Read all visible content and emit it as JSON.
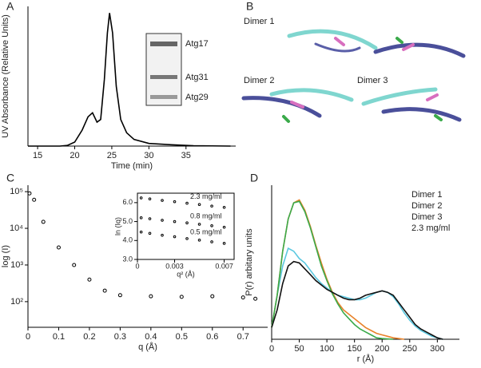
{
  "chart_data": [
    {
      "type": "line",
      "panel": "A",
      "xlabel": "Time (min)",
      "ylabel": "UV Absorbance (Relative Units)",
      "x": [
        13.7,
        18,
        19,
        20,
        21,
        21.8,
        22.4,
        23,
        23.5,
        24,
        24.4,
        24.7,
        25.1,
        25.6,
        26.2,
        27,
        28,
        30,
        33,
        36,
        41
      ],
      "values": [
        0,
        0,
        0.5,
        3,
        12,
        22,
        25,
        18,
        20,
        50,
        85,
        100,
        85,
        45,
        20,
        10,
        5,
        2,
        1,
        0.3,
        0
      ],
      "color": "#000000",
      "xlim": [
        13.7,
        41.7
      ],
      "ylim": [
        0,
        105
      ],
      "xticks": [
        15,
        20,
        25,
        30,
        35
      ],
      "frame": "open",
      "gel_labels": [
        "Atg17",
        "Atg31",
        "Atg29"
      ]
    },
    {
      "type": "scatter",
      "panel": "C",
      "xlabel": "q (Å)",
      "ylabel": "log (I)",
      "log_y": true,
      "x": [
        0.005,
        0.02,
        0.05,
        0.1,
        0.15,
        0.2,
        0.25,
        0.3,
        0.4,
        0.5,
        0.6,
        0.7,
        0.74
      ],
      "values": [
        90000,
        60000,
        15000,
        3000,
        1000,
        400,
        200,
        150,
        140,
        135,
        140,
        130,
        120
      ],
      "color": "#000000",
      "xlim": [
        0,
        0.78
      ],
      "ylim": [
        20,
        150000
      ],
      "xticks": [
        0,
        0.1,
        0.2,
        0.3,
        0.4,
        0.5,
        0.6,
        0.7
      ],
      "yticks": [
        {
          "value": 100,
          "label": "10²"
        },
        {
          "value": 1000,
          "label": "10³"
        },
        {
          "value": 10000,
          "label": "10⁴"
        },
        {
          "value": 100000,
          "label": "10⁵"
        }
      ],
      "frame": "open"
    },
    {
      "type": "scatter",
      "xlabel": "q² (Å)",
      "ylabel": "ln (Iq)",
      "legend": "inline",
      "frame": "box",
      "x": [
        0.0003,
        0.001,
        0.002,
        0.003,
        0.004,
        0.005,
        0.006,
        0.007
      ],
      "series": [
        {
          "name": "2.3 mg/ml",
          "color": "#000000",
          "values": [
            6.25,
            6.2,
            6.12,
            6.05,
            5.97,
            5.9,
            5.82,
            5.75
          ]
        },
        {
          "name": "0.8 mg/ml",
          "color": "#000000",
          "values": [
            5.2,
            5.15,
            5.07,
            5.0,
            4.93,
            4.86,
            4.78,
            4.7
          ]
        },
        {
          "name": "0.5 mg/ml",
          "color": "#000000",
          "values": [
            4.45,
            4.38,
            4.28,
            4.2,
            4.1,
            4.02,
            3.93,
            3.85
          ]
        }
      ],
      "xlim": [
        0,
        0.0078
      ],
      "ylim": [
        3,
        6.5
      ],
      "xticks": [
        0,
        0.003,
        0.007
      ],
      "yticks": [
        {
          "value": 3,
          "label": "3.0"
        },
        {
          "value": 4,
          "label": "4.0"
        },
        {
          "value": 5,
          "label": "5.0"
        },
        {
          "value": 6,
          "label": "6.0"
        }
      ]
    },
    {
      "type": "line",
      "panel": "D",
      "xlabel": "r (Å)",
      "ylabel": "P(r) arbitary units",
      "legend": "upper right",
      "frame": "open",
      "x": [
        0,
        10,
        20,
        30,
        40,
        50,
        60,
        70,
        80,
        90,
        100,
        110,
        120,
        130,
        140,
        150,
        160,
        170,
        180,
        190,
        200,
        210,
        220,
        230,
        240,
        250,
        260,
        270,
        280,
        290,
        300,
        310
      ],
      "series": [
        {
          "name": "Dimer 1",
          "color": "#5bc8e0",
          "values": [
            0.08,
            0.3,
            0.5,
            0.62,
            0.6,
            0.55,
            0.52,
            0.47,
            0.42,
            0.38,
            0.35,
            0.32,
            0.3,
            0.29,
            0.28,
            0.27,
            0.27,
            0.28,
            0.3,
            0.32,
            0.33,
            0.32,
            0.29,
            0.24,
            0.18,
            0.13,
            0.09,
            0.06,
            0.04,
            0.02,
            0.01,
            0
          ]
        },
        {
          "name": "Dimer 2",
          "color": "#e8822a",
          "values": [
            0.08,
            0.3,
            0.6,
            0.82,
            0.93,
            0.95,
            0.88,
            0.77,
            0.64,
            0.52,
            0.41,
            0.32,
            0.25,
            0.2,
            0.17,
            0.14,
            0.11,
            0.08,
            0.06,
            0.04,
            0.03,
            0.02,
            0.01,
            0.005,
            0,
            null,
            null,
            null,
            null,
            null,
            null,
            null
          ]
        },
        {
          "name": "Dimer 3",
          "color": "#3aaa4a",
          "values": [
            0.08,
            0.3,
            0.6,
            0.82,
            0.93,
            0.94,
            0.87,
            0.76,
            0.63,
            0.5,
            0.4,
            0.31,
            0.24,
            0.18,
            0.14,
            0.1,
            0.07,
            0.05,
            0.03,
            0.01,
            0.005,
            0.002,
            0,
            null,
            null,
            null,
            null,
            null,
            null,
            null,
            null,
            null
          ]
        },
        {
          "name": "2.3 mg/ml",
          "color": "#111111",
          "values": [
            0.08,
            0.2,
            0.38,
            0.5,
            0.53,
            0.52,
            0.48,
            0.44,
            0.4,
            0.37,
            0.34,
            0.32,
            0.3,
            0.28,
            0.27,
            0.27,
            0.28,
            0.3,
            0.31,
            0.32,
            0.33,
            0.32,
            0.3,
            0.25,
            0.2,
            0.15,
            0.1,
            0.07,
            0.05,
            0.03,
            0.01,
            0
          ]
        }
      ],
      "xlim": [
        0,
        340
      ],
      "ylim": [
        0,
        1.05
      ],
      "xticks": [
        0,
        50,
        100,
        150,
        200,
        250,
        300
      ]
    }
  ],
  "structure_panel": {
    "label": "B",
    "captions": [
      "Dimer 1",
      "Dimer 2",
      "Dimer 3"
    ]
  }
}
